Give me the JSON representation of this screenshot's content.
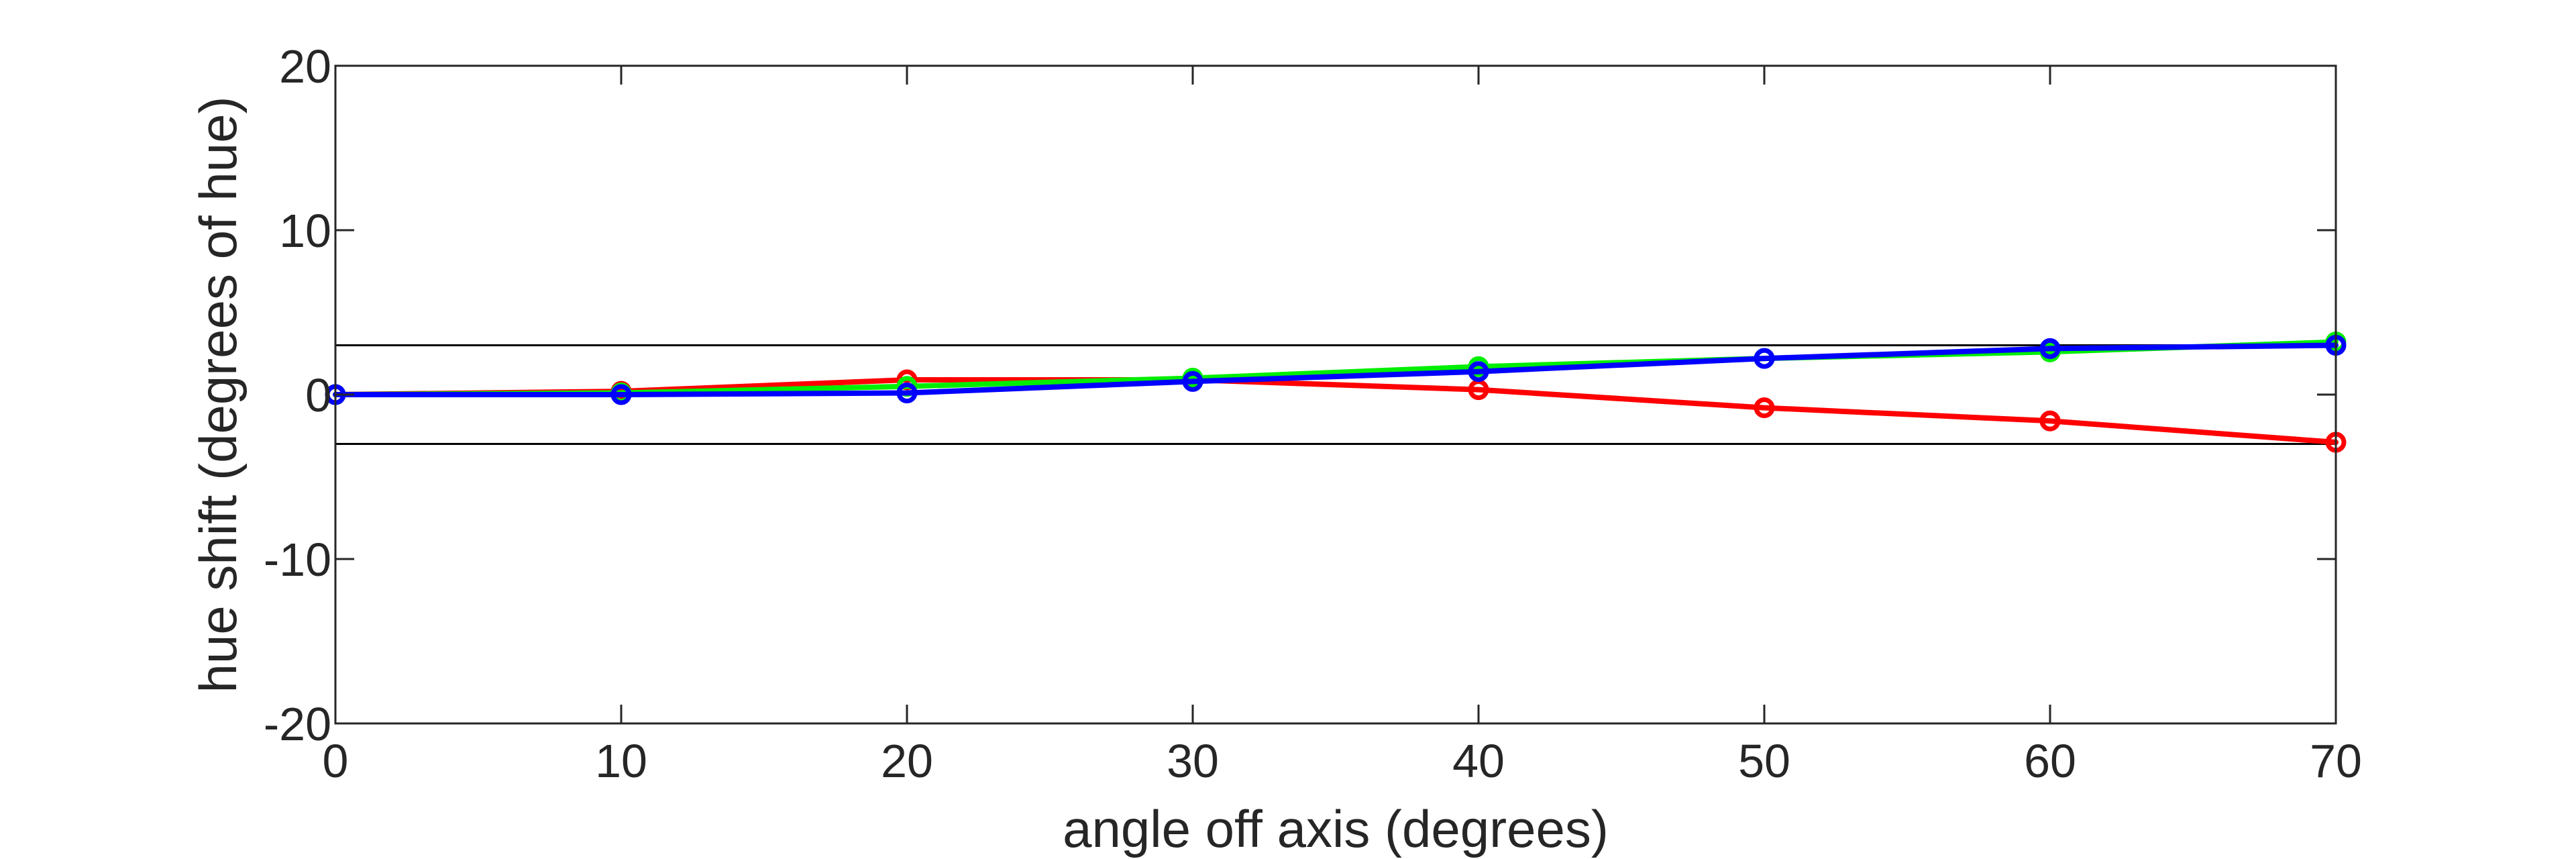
{
  "chart_data": {
    "type": "line",
    "title": "",
    "xlabel": "angle off axis (degrees)",
    "ylabel": "hue shift (degrees of hue)",
    "xlim": [
      0,
      70
    ],
    "ylim": [
      -20,
      20
    ],
    "xticks": [
      0,
      10,
      20,
      30,
      40,
      50,
      60,
      70
    ],
    "yticks": [
      -20,
      -10,
      0,
      10,
      20
    ],
    "xtick_labels": [
      "0",
      "10",
      "20",
      "30",
      "40",
      "50",
      "60",
      "70"
    ],
    "ytick_labels": [
      "-20",
      "-10",
      "0",
      "10",
      "20"
    ],
    "grid": false,
    "legend": "none",
    "reference_lines": [
      {
        "y": 3,
        "color": "#000000"
      },
      {
        "y": -3,
        "color": "#000000"
      }
    ],
    "x": [
      0,
      10,
      20,
      30,
      40,
      50,
      60,
      70
    ],
    "series": [
      {
        "color": "#ff0000",
        "values": [
          0,
          0.2,
          0.9,
          0.9,
          0.3,
          -0.8,
          -1.6,
          -2.9
        ]
      },
      {
        "color": "#00ee00",
        "values": [
          0,
          0.1,
          0.5,
          1.0,
          1.7,
          2.2,
          2.6,
          3.2
        ]
      },
      {
        "color": "#0000ff",
        "values": [
          0,
          0.0,
          0.1,
          0.8,
          1.4,
          2.2,
          2.8,
          3.0
        ]
      }
    ]
  }
}
